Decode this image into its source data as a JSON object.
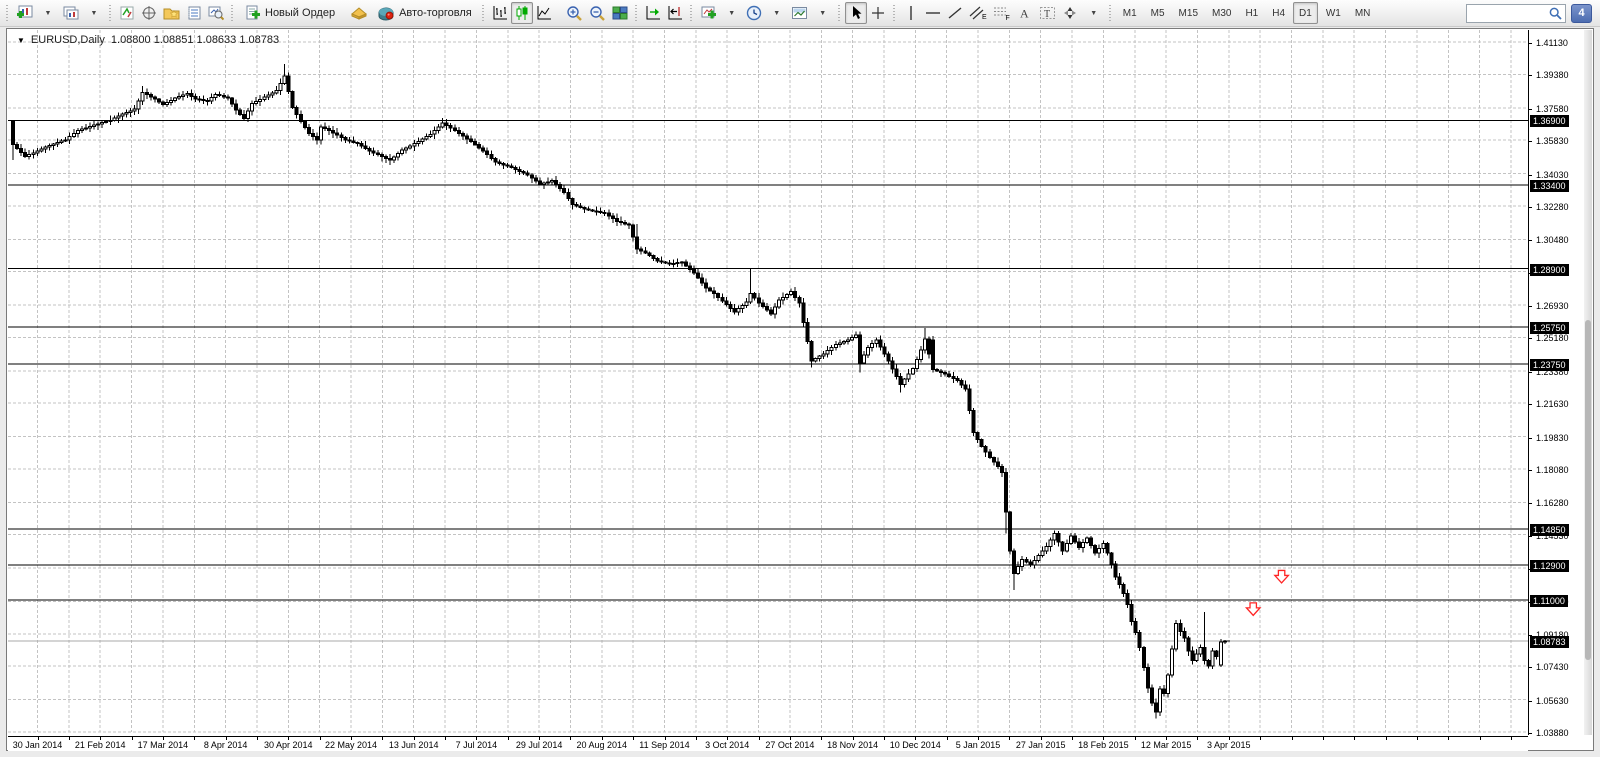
{
  "toolbar": {
    "new_order": "Новый Ордер",
    "autotrade": "Авто-торговля",
    "timeframes": [
      {
        "label": "M1",
        "active": false
      },
      {
        "label": "M5",
        "active": false
      },
      {
        "label": "M15",
        "active": false
      },
      {
        "label": "M30",
        "active": false
      },
      {
        "label": "H1",
        "active": false
      },
      {
        "label": "H4",
        "active": false
      },
      {
        "label": "D1",
        "active": true
      },
      {
        "label": "W1",
        "active": false
      },
      {
        "label": "MN",
        "active": false
      }
    ],
    "search_value": "",
    "notification_badge": "4",
    "icons": [
      "new-chart-icon",
      "chart-profiles-icon",
      "market-watch-icon",
      "data-window-icon",
      "navigator-icon",
      "terminal-icon",
      "strategy-tester-icon",
      "new-order-icon",
      "metaeditor-icon",
      "autotrading-icon",
      "bar-chart-icon",
      "candlestick-chart-icon",
      "line-chart-icon",
      "zoom-in-icon",
      "zoom-out-icon",
      "tile-windows-icon",
      "auto-scroll-icon",
      "chart-shift-icon",
      "indicators-icon",
      "periods-icon",
      "templates-icon",
      "cursor-icon",
      "crosshair-icon",
      "vertical-line-icon",
      "horizontal-line-icon",
      "trendline-icon",
      "equidistant-channel-icon",
      "fibonacci-icon",
      "text-icon",
      "text-label-icon",
      "arrows-icon",
      "search-icon",
      "chat-badge-icon"
    ]
  },
  "chart": {
    "symbol_label": "EURUSD,Daily",
    "ohlc_label": "1.08800 1.08851 1.08633 1.08783"
  },
  "colors": {
    "level_line": "#000000",
    "grid": "#c3c3c3",
    "bull_body": "#ffffff",
    "bear_body": "#000000",
    "bid_line": "#a8a8a8",
    "axis_label_bg": "#000000",
    "axis_label_text": "#ffffff",
    "arrow_red": "#ff2525",
    "autotrade_red": "#dd2211",
    "plus_green": "#21a121",
    "clock_blue": "#3f6fb5",
    "badge_blue": "#5a77bd"
  },
  "chart_data": {
    "type": "candlestick",
    "symbol": "EURUSD",
    "timeframe": "Daily",
    "title": "EURUSD,Daily",
    "ohlc_display": {
      "open": "1.08800",
      "high": "1.08851",
      "low": "1.08633",
      "close": "1.08783"
    },
    "y_range": [
      1.0388,
      1.4113
    ],
    "grid": true,
    "y_ticks": [
      1.4113,
      1.3938,
      1.3758,
      1.3583,
      1.3403,
      1.3228,
      1.3048,
      1.2873,
      1.2693,
      1.2518,
      1.2338,
      1.2163,
      1.1983,
      1.1808,
      1.1628,
      1.1453,
      1.1273,
      1.1093,
      1.0918,
      1.0743,
      1.0563,
      1.0388
    ],
    "level_lines": [
      1.369,
      1.334,
      1.289,
      1.2575,
      1.2375,
      1.1485,
      1.129,
      1.11
    ],
    "current_price": 1.08783,
    "x_labels": [
      "30 Jan 2014",
      "21 Feb 2014",
      "17 Mar 2014",
      "8 Apr 2014",
      "30 Apr 2014",
      "22 May 2014",
      "13 Jun 2014",
      "7 Jul 2014",
      "29 Jul 2014",
      "20 Aug 2014",
      "11 Sep 2014",
      "3 Oct 2014",
      "27 Oct 2014",
      "18 Nov 2014",
      "10 Dec 2014",
      "5 Jan 2015",
      "27 Jan 2015",
      "18 Feb 2015",
      "12 Mar 2015",
      "3 Apr 2015"
    ],
    "bars_count": 300,
    "close_anchors": [
      [
        0,
        1.356
      ],
      [
        3,
        1.3495
      ],
      [
        5,
        1.3515
      ],
      [
        9,
        1.3555
      ],
      [
        13,
        1.3585
      ],
      [
        16,
        1.3635
      ],
      [
        20,
        1.3665
      ],
      [
        24,
        1.369
      ],
      [
        27,
        1.3725
      ],
      [
        30,
        1.375
      ],
      [
        32,
        1.384
      ],
      [
        35,
        1.3805
      ],
      [
        37,
        1.3775
      ],
      [
        40,
        1.381
      ],
      [
        43,
        1.3835
      ],
      [
        45,
        1.3805
      ],
      [
        48,
        1.3795
      ],
      [
        50,
        1.383
      ],
      [
        53,
        1.381
      ],
      [
        55,
        1.3745
      ],
      [
        57,
        1.37
      ],
      [
        59,
        1.378
      ],
      [
        62,
        1.3815
      ],
      [
        65,
        1.385
      ],
      [
        67,
        1.393
      ],
      [
        69,
        1.376
      ],
      [
        71,
        1.3685
      ],
      [
        73,
        1.362
      ],
      [
        75,
        1.3585
      ],
      [
        76,
        1.3655
      ],
      [
        78,
        1.3635
      ],
      [
        82,
        1.3585
      ],
      [
        85,
        1.3565
      ],
      [
        88,
        1.3525
      ],
      [
        91,
        1.3495
      ],
      [
        93,
        1.3475
      ],
      [
        96,
        1.353
      ],
      [
        100,
        1.3575
      ],
      [
        103,
        1.3615
      ],
      [
        106,
        1.3675
      ],
      [
        109,
        1.3635
      ],
      [
        113,
        1.3575
      ],
      [
        116,
        1.3525
      ],
      [
        119,
        1.3465
      ],
      [
        123,
        1.3435
      ],
      [
        127,
        1.3395
      ],
      [
        130,
        1.3345
      ],
      [
        133,
        1.3365
      ],
      [
        136,
        1.33
      ],
      [
        138,
        1.3235
      ],
      [
        142,
        1.3205
      ],
      [
        146,
        1.319
      ],
      [
        149,
        1.3145
      ],
      [
        152,
        1.3125
      ],
      [
        154,
        1.2995
      ],
      [
        156,
        1.2975
      ],
      [
        159,
        1.293
      ],
      [
        162,
        1.2915
      ],
      [
        165,
        1.2925
      ],
      [
        168,
        1.2865
      ],
      [
        171,
        1.2785
      ],
      [
        173,
        1.2755
      ],
      [
        176,
        1.2695
      ],
      [
        178,
        1.2655
      ],
      [
        181,
        1.271
      ],
      [
        182,
        1.2755
      ],
      [
        184,
        1.2705
      ],
      [
        187,
        1.2645
      ],
      [
        189,
        1.272
      ],
      [
        192,
        1.2765
      ],
      [
        194,
        1.2705
      ],
      [
        197,
        1.239
      ],
      [
        200,
        1.243
      ],
      [
        203,
        1.248
      ],
      [
        206,
        1.2505
      ],
      [
        208,
        1.253
      ],
      [
        209,
        1.238
      ],
      [
        211,
        1.2465
      ],
      [
        213,
        1.2505
      ],
      [
        216,
        1.239
      ],
      [
        219,
        1.2265
      ],
      [
        222,
        1.235
      ],
      [
        224,
        1.245
      ],
      [
        225,
        1.251
      ],
      [
        227,
        1.2345
      ],
      [
        230,
        1.232
      ],
      [
        233,
        1.2285
      ],
      [
        235,
        1.224
      ],
      [
        237,
        1.2005
      ],
      [
        239,
        1.193
      ],
      [
        241,
        1.187
      ],
      [
        243,
        1.182
      ],
      [
        244,
        1.179
      ],
      [
        245,
        1.1575
      ],
      [
        246,
        1.1365
      ],
      [
        247,
        1.1245
      ],
      [
        249,
        1.132
      ],
      [
        251,
        1.129
      ],
      [
        253,
        1.134
      ],
      [
        255,
        1.139
      ],
      [
        257,
        1.146
      ],
      [
        259,
        1.1365
      ],
      [
        261,
        1.1445
      ],
      [
        263,
        1.1385
      ],
      [
        265,
        1.1435
      ],
      [
        267,
        1.1355
      ],
      [
        269,
        1.1405
      ],
      [
        270,
        1.1355
      ],
      [
        271,
        1.1295
      ],
      [
        272,
        1.1225
      ],
      [
        273,
        1.1185
      ],
      [
        274,
        1.1135
      ],
      [
        275,
        1.1075
      ],
      [
        276,
        1.0985
      ],
      [
        277,
        1.0925
      ],
      [
        278,
        1.0845
      ],
      [
        279,
        1.0735
      ],
      [
        280,
        1.0625
      ],
      [
        281,
        1.0545
      ],
      [
        282,
        1.0495
      ],
      [
        283,
        1.062
      ],
      [
        284,
        1.0595
      ],
      [
        285,
        1.0695
      ],
      [
        286,
        1.0835
      ],
      [
        287,
        1.0975
      ],
      [
        288,
        1.093
      ],
      [
        289,
        1.0895
      ],
      [
        290,
        1.0825
      ],
      [
        291,
        1.0775
      ],
      [
        292,
        1.081
      ],
      [
        293,
        1.0845
      ],
      [
        294,
        1.0775
      ],
      [
        295,
        1.0745
      ],
      [
        296,
        1.0825
      ],
      [
        297,
        1.0795
      ],
      [
        298,
        1.0875
      ],
      [
        299,
        1.08783
      ]
    ],
    "wick_overrides": {
      "0": {
        "o": 1.3685,
        "h": 1.369,
        "l": 1.3475
      },
      "32": {
        "h": 1.3875
      },
      "67": {
        "h": 1.3993
      },
      "106": {
        "h": 1.3702
      },
      "154": {
        "h": 1.313
      },
      "182": {
        "h": 1.2887
      },
      "197": {
        "l": 1.2355
      },
      "209": {
        "l": 1.233
      },
      "219": {
        "l": 1.222
      },
      "225": {
        "h": 1.257
      },
      "227": {
        "o": 1.2505,
        "l": 1.233
      },
      "237": {
        "l": 1.1985
      },
      "245": {
        "l": 1.146
      },
      "247": {
        "l": 1.1155
      },
      "282": {
        "l": 1.0462
      },
      "294": {
        "h": 1.1036
      },
      "298": {
        "o": 1.075,
        "c": 1.0875,
        "h": 1.089,
        "l": 1.0738
      },
      "299": {
        "o": 1.088,
        "h": 1.08851,
        "l": 1.08633,
        "c": 1.08783
      }
    },
    "arrows": [
      {
        "type": "down-arrow",
        "bar": 313,
        "price": 1.1225
      },
      {
        "type": "down-arrow",
        "bar": 306,
        "price": 1.105
      }
    ]
  }
}
